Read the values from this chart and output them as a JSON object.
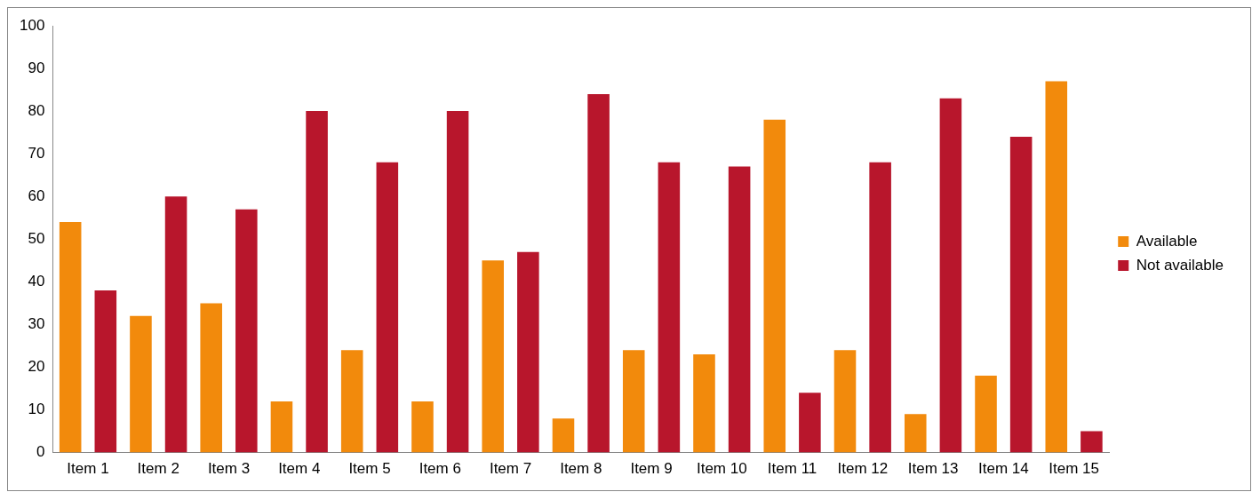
{
  "chart_data": {
    "type": "bar",
    "categories": [
      "Item 1",
      "Item 2",
      "Item 3",
      "Item 4",
      "Item 5",
      "Item 6",
      "Item 7",
      "Item 8",
      "Item 9",
      "Item 10",
      "Item 11",
      "Item 12",
      "Item 13",
      "Item 14",
      "Item 15"
    ],
    "series": [
      {
        "name": "Available",
        "color": "#f28a0c",
        "values": [
          54,
          32,
          35,
          12,
          24,
          12,
          45,
          8,
          24,
          23,
          78,
          24,
          9,
          18,
          87
        ]
      },
      {
        "name": "Not available",
        "color": "#b8162c",
        "values": [
          38,
          60,
          57,
          80,
          68,
          80,
          47,
          84,
          68,
          67,
          14,
          68,
          83,
          74,
          5
        ]
      }
    ],
    "ylim": [
      0,
      100
    ],
    "yticks": [
      0,
      10,
      20,
      30,
      40,
      50,
      60,
      70,
      80,
      90,
      100
    ],
    "grid": false,
    "legend": "right"
  }
}
